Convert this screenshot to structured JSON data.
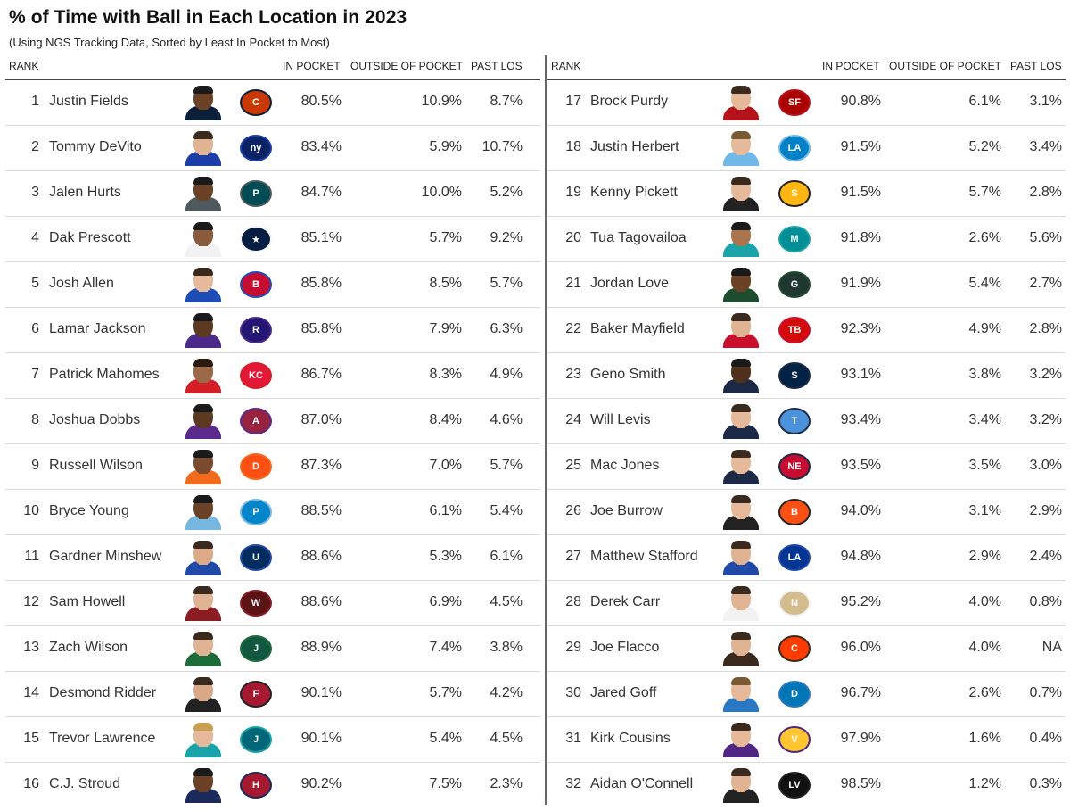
{
  "title": "% of Time with Ball in Each Location in 2023",
  "subtitle": "(Using NGS Tracking Data, Sorted by Least In Pocket to Most)",
  "headers": {
    "rank": "RANK",
    "in_pocket": "IN POCKET",
    "outside_pocket": "OUTSIDE OF POCKET",
    "past_los": "PAST LOS"
  },
  "left_rows": [
    {
      "rank": "1",
      "name": "Justin Fields",
      "in_pocket": "80.5%",
      "outside_pocket": "10.9%",
      "past_los": "8.7%",
      "team_icon": "bears-logo-icon",
      "jersey": "#0b1f3a",
      "accent": "#c83803",
      "skin": "#6b4226",
      "hair": "#1a1a1a",
      "team_abbr": "C"
    },
    {
      "rank": "2",
      "name": "Tommy DeVito",
      "in_pocket": "83.4%",
      "outside_pocket": "5.9%",
      "past_los": "10.7%",
      "team_icon": "giants-logo-icon",
      "jersey": "#1c3ea8",
      "accent": "#0b2265",
      "skin": "#e0b393",
      "hair": "#3a2a1e",
      "team_abbr": "ny"
    },
    {
      "rank": "3",
      "name": "Jalen Hurts",
      "in_pocket": "84.7%",
      "outside_pocket": "10.0%",
      "past_los": "5.2%",
      "team_icon": "eagles-logo-icon",
      "jersey": "#4e5a5e",
      "accent": "#004c54",
      "skin": "#6b4226",
      "hair": "#1a1a1a",
      "team_abbr": "P"
    },
    {
      "rank": "4",
      "name": "Dak Prescott",
      "in_pocket": "85.1%",
      "outside_pocket": "5.7%",
      "past_los": "9.2%",
      "team_icon": "cowboys-logo-icon",
      "jersey": "#f2f2f2",
      "accent": "#041e42",
      "skin": "#8a5a3c",
      "hair": "#1a1a1a",
      "team_abbr": "★"
    },
    {
      "rank": "5",
      "name": "Josh Allen",
      "in_pocket": "85.8%",
      "outside_pocket": "8.5%",
      "past_los": "5.7%",
      "team_icon": "bills-logo-icon",
      "jersey": "#1f4db8",
      "accent": "#c60c30",
      "skin": "#e6b99a",
      "hair": "#3a2a1e",
      "team_abbr": "B"
    },
    {
      "rank": "6",
      "name": "Lamar Jackson",
      "in_pocket": "85.8%",
      "outside_pocket": "7.9%",
      "past_los": "6.3%",
      "team_icon": "ravens-logo-icon",
      "jersey": "#4b2a8a",
      "accent": "#241773",
      "skin": "#5c3a22",
      "hair": "#1a1a1a",
      "team_abbr": "R"
    },
    {
      "rank": "7",
      "name": "Patrick Mahomes",
      "in_pocket": "86.7%",
      "outside_pocket": "8.3%",
      "past_los": "4.9%",
      "team_icon": "chiefs-logo-icon",
      "jersey": "#d31f25",
      "accent": "#e31837",
      "skin": "#9a6a48",
      "hair": "#2a1a10",
      "team_abbr": "KC"
    },
    {
      "rank": "8",
      "name": "Joshua Dobbs",
      "in_pocket": "87.0%",
      "outside_pocket": "8.4%",
      "past_los": "4.6%",
      "team_icon": "vikings-logo-icon",
      "jersey": "#5a2b8c",
      "accent": "#97233f",
      "skin": "#5c3a22",
      "hair": "#1a1a1a",
      "team_abbr": "A"
    },
    {
      "rank": "9",
      "name": "Russell Wilson",
      "in_pocket": "87.3%",
      "outside_pocket": "7.0%",
      "past_los": "5.7%",
      "team_icon": "broncos-logo-icon",
      "jersey": "#f26b1d",
      "accent": "#fb4f14",
      "skin": "#7a4b2e",
      "hair": "#1a1a1a",
      "team_abbr": "D"
    },
    {
      "rank": "10",
      "name": "Bryce Young",
      "in_pocket": "88.5%",
      "outside_pocket": "6.1%",
      "past_los": "5.4%",
      "team_icon": "panthers-logo-icon",
      "jersey": "#78b8e0",
      "accent": "#0085ca",
      "skin": "#6b4226",
      "hair": "#1a1a1a",
      "team_abbr": "P"
    },
    {
      "rank": "11",
      "name": "Gardner Minshew",
      "in_pocket": "88.6%",
      "outside_pocket": "5.3%",
      "past_los": "6.1%",
      "team_icon": "colts-logo-icon",
      "jersey": "#1f4aa8",
      "accent": "#002c5f",
      "skin": "#dcaa88",
      "hair": "#3a2a1e",
      "team_abbr": "U"
    },
    {
      "rank": "12",
      "name": "Sam Howell",
      "in_pocket": "88.6%",
      "outside_pocket": "6.9%",
      "past_los": "4.5%",
      "team_icon": "commanders-logo-icon",
      "jersey": "#8a1c22",
      "accent": "#5a1414",
      "skin": "#e0b393",
      "hair": "#3a2a1e",
      "team_abbr": "W"
    },
    {
      "rank": "13",
      "name": "Zach Wilson",
      "in_pocket": "88.9%",
      "outside_pocket": "7.4%",
      "past_los": "3.8%",
      "team_icon": "jets-logo-icon",
      "jersey": "#1e6b3a",
      "accent": "#125740",
      "skin": "#e0b393",
      "hair": "#3a2a1e",
      "team_abbr": "J"
    },
    {
      "rank": "14",
      "name": "Desmond Ridder",
      "in_pocket": "90.1%",
      "outside_pocket": "5.7%",
      "past_los": "4.2%",
      "team_icon": "falcons-logo-icon",
      "jersey": "#222222",
      "accent": "#a71930",
      "skin": "#d9a886",
      "hair": "#3a2a1e",
      "team_abbr": "F"
    },
    {
      "rank": "15",
      "name": "Trevor Lawrence",
      "in_pocket": "90.1%",
      "outside_pocket": "5.4%",
      "past_los": "4.5%",
      "team_icon": "jaguars-logo-icon",
      "jersey": "#1aa3a8",
      "accent": "#006778",
      "skin": "#e6b99a",
      "hair": "#c9a050",
      "team_abbr": "J"
    },
    {
      "rank": "16",
      "name": "C.J. Stroud",
      "in_pocket": "90.2%",
      "outside_pocket": "7.5%",
      "past_los": "2.3%",
      "team_icon": "texans-logo-icon",
      "jersey": "#1b2a5a",
      "accent": "#a71930",
      "skin": "#6b4226",
      "hair": "#1a1a1a",
      "team_abbr": "H"
    }
  ],
  "right_rows": [
    {
      "rank": "17",
      "name": "Brock Purdy",
      "in_pocket": "90.8%",
      "outside_pocket": "6.1%",
      "past_los": "3.1%",
      "team_icon": "49ers-logo-icon",
      "jersey": "#b5121b",
      "accent": "#aa0000",
      "skin": "#e6b99a",
      "hair": "#3a2a1e",
      "team_abbr": "SF"
    },
    {
      "rank": "18",
      "name": "Justin Herbert",
      "in_pocket": "91.5%",
      "outside_pocket": "5.2%",
      "past_los": "3.4%",
      "team_icon": "chargers-logo-icon",
      "jersey": "#6fb8e8",
      "accent": "#0080c6",
      "skin": "#e6b99a",
      "hair": "#7a5a30",
      "team_abbr": "LA"
    },
    {
      "rank": "19",
      "name": "Kenny Pickett",
      "in_pocket": "91.5%",
      "outside_pocket": "5.7%",
      "past_los": "2.8%",
      "team_icon": "steelers-logo-icon",
      "jersey": "#222222",
      "accent": "#ffb612",
      "skin": "#e6b99a",
      "hair": "#3a2a1e",
      "team_abbr": "S"
    },
    {
      "rank": "20",
      "name": "Tua Tagovailoa",
      "in_pocket": "91.8%",
      "outside_pocket": "2.6%",
      "past_los": "5.6%",
      "team_icon": "dolphins-logo-icon",
      "jersey": "#1aa3a8",
      "accent": "#008e97",
      "skin": "#a9744e",
      "hair": "#1a1a1a",
      "team_abbr": "M"
    },
    {
      "rank": "21",
      "name": "Jordan Love",
      "in_pocket": "91.9%",
      "outside_pocket": "5.4%",
      "past_los": "2.7%",
      "team_icon": "packers-logo-icon",
      "jersey": "#1d4d2e",
      "accent": "#203731",
      "skin": "#6b4226",
      "hair": "#1a1a1a",
      "team_abbr": "G"
    },
    {
      "rank": "22",
      "name": "Baker Mayfield",
      "in_pocket": "92.3%",
      "outside_pocket": "4.9%",
      "past_los": "2.8%",
      "team_icon": "buccaneers-logo-icon",
      "jersey": "#c8102e",
      "accent": "#d50a0a",
      "skin": "#e0b393",
      "hair": "#3a2a1e",
      "team_abbr": "TB"
    },
    {
      "rank": "23",
      "name": "Geno Smith",
      "in_pocket": "93.1%",
      "outside_pocket": "3.8%",
      "past_los": "3.2%",
      "team_icon": "seahawks-logo-icon",
      "jersey": "#1c2a48",
      "accent": "#002244",
      "skin": "#4e301c",
      "hair": "#1a1a1a",
      "team_abbr": "S"
    },
    {
      "rank": "24",
      "name": "Will Levis",
      "in_pocket": "93.4%",
      "outside_pocket": "3.4%",
      "past_los": "3.2%",
      "team_icon": "titans-logo-icon",
      "jersey": "#1c2a48",
      "accent": "#4b92db",
      "skin": "#e6b99a",
      "hair": "#3a2a1e",
      "team_abbr": "T"
    },
    {
      "rank": "25",
      "name": "Mac Jones",
      "in_pocket": "93.5%",
      "outside_pocket": "3.5%",
      "past_los": "3.0%",
      "team_icon": "patriots-logo-icon",
      "jersey": "#1c2a48",
      "accent": "#c60c30",
      "skin": "#e6b99a",
      "hair": "#3a2a1e",
      "team_abbr": "NE"
    },
    {
      "rank": "26",
      "name": "Joe Burrow",
      "in_pocket": "94.0%",
      "outside_pocket": "3.1%",
      "past_los": "2.9%",
      "team_icon": "bengals-logo-icon",
      "jersey": "#222222",
      "accent": "#fb4f14",
      "skin": "#e6b99a",
      "hair": "#3a2a1e",
      "team_abbr": "B"
    },
    {
      "rank": "27",
      "name": "Matthew Stafford",
      "in_pocket": "94.8%",
      "outside_pocket": "2.9%",
      "past_los": "2.4%",
      "team_icon": "rams-logo-icon",
      "jersey": "#1f4aa8",
      "accent": "#003594",
      "skin": "#e0b393",
      "hair": "#3a2a1e",
      "team_abbr": "LA"
    },
    {
      "rank": "28",
      "name": "Derek Carr",
      "in_pocket": "95.2%",
      "outside_pocket": "4.0%",
      "past_los": "0.8%",
      "team_icon": "saints-logo-icon",
      "jersey": "#f2f2f2",
      "accent": "#d3bc8d",
      "skin": "#e0b393",
      "hair": "#3a2a1e",
      "team_abbr": "N"
    },
    {
      "rank": "29",
      "name": "Joe Flacco",
      "in_pocket": "96.0%",
      "outside_pocket": "4.0%",
      "past_los": "NA",
      "team_icon": "browns-logo-icon",
      "jersey": "#3a2a1e",
      "accent": "#ff3c00",
      "skin": "#e0b393",
      "hair": "#3a2a1e",
      "team_abbr": "C"
    },
    {
      "rank": "30",
      "name": "Jared Goff",
      "in_pocket": "96.7%",
      "outside_pocket": "2.6%",
      "past_los": "0.7%",
      "team_icon": "lions-logo-icon",
      "jersey": "#2a78c2",
      "accent": "#0076b6",
      "skin": "#e6b99a",
      "hair": "#7a5a30",
      "team_abbr": "D"
    },
    {
      "rank": "31",
      "name": "Kirk Cousins",
      "in_pocket": "97.9%",
      "outside_pocket": "1.6%",
      "past_los": "0.4%",
      "team_icon": "vikings-logo-icon",
      "jersey": "#4f2683",
      "accent": "#ffc62f",
      "skin": "#e6b99a",
      "hair": "#3a2a1e",
      "team_abbr": "V"
    },
    {
      "rank": "32",
      "name": "Aidan O'Connell",
      "in_pocket": "98.5%",
      "outside_pocket": "1.2%",
      "past_los": "0.3%",
      "team_icon": "raiders-logo-icon",
      "jersey": "#222222",
      "accent": "#111111",
      "skin": "#e0b393",
      "hair": "#3a2a1e",
      "team_abbr": "LV"
    }
  ]
}
